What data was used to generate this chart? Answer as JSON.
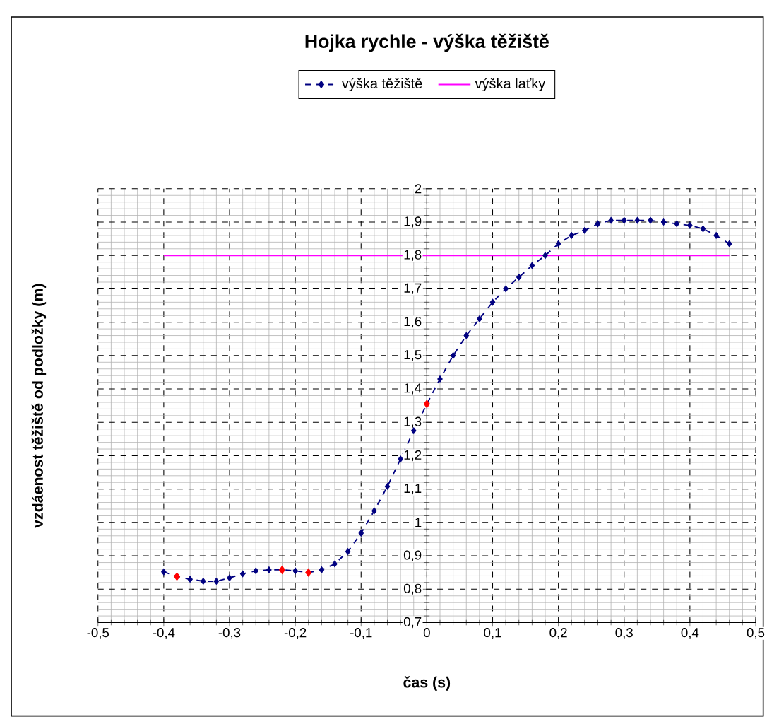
{
  "chart_data": {
    "type": "line",
    "title": "Hojka rychle - výška těžiště",
    "xlabel": "čas (s)",
    "ylabel": "vzdáenost těžiště od podložky (m)",
    "xlim": [
      -0.5,
      0.5
    ],
    "ylim": [
      0.7,
      2.0
    ],
    "xticks": [
      {
        "value": -0.5,
        "label": "-0,5"
      },
      {
        "value": -0.4,
        "label": "-0,4"
      },
      {
        "value": -0.3,
        "label": "-0,3"
      },
      {
        "value": -0.2,
        "label": "-0,2"
      },
      {
        "value": -0.1,
        "label": "-0,1"
      },
      0,
      {
        "value": 0.1,
        "label": "0,1"
      },
      {
        "value": 0.2,
        "label": "0,2"
      },
      {
        "value": 0.3,
        "label": "0,3"
      },
      {
        "value": 0.4,
        "label": "0,4"
      },
      {
        "value": 0.5,
        "label": "0,5"
      }
    ],
    "yticks": [
      {
        "value": 0.7,
        "label": "0,7"
      },
      {
        "value": 0.8,
        "label": "0,8"
      },
      {
        "value": 0.9,
        "label": "0,9"
      },
      1,
      {
        "value": 1.1,
        "label": "1,1"
      },
      {
        "value": 1.2,
        "label": "1,2"
      },
      {
        "value": 1.3,
        "label": "1,3"
      },
      {
        "value": 1.4,
        "label": "1,4"
      },
      {
        "value": 1.5,
        "label": "1,5"
      },
      {
        "value": 1.6,
        "label": "1,6"
      },
      {
        "value": 1.7,
        "label": "1,7"
      },
      {
        "value": 1.8,
        "label": "1,8"
      },
      {
        "value": 1.9,
        "label": "1,9"
      },
      2
    ],
    "grid": true,
    "legend": "top",
    "series": [
      {
        "name": "výška těžiště",
        "color": "#000080",
        "marker": "diamond",
        "line_style": "dashed",
        "x": [
          -0.4,
          -0.38,
          -0.36,
          -0.34,
          -0.32,
          -0.3,
          -0.28,
          -0.26,
          -0.24,
          -0.22,
          -0.2,
          -0.18,
          -0.16,
          -0.14,
          -0.12,
          -0.1,
          -0.08,
          -0.06,
          -0.04,
          -0.02,
          0.0,
          0.02,
          0.04,
          0.06,
          0.08,
          0.1,
          0.12,
          0.14,
          0.16,
          0.18,
          0.2,
          0.22,
          0.24,
          0.26,
          0.28,
          0.3,
          0.32,
          0.34,
          0.36,
          0.38,
          0.4,
          0.42,
          0.44,
          0.46
        ],
        "values": [
          0.852,
          0.838,
          0.83,
          0.824,
          0.824,
          0.834,
          0.846,
          0.855,
          0.858,
          0.858,
          0.855,
          0.85,
          0.858,
          0.876,
          0.913,
          0.968,
          1.035,
          1.108,
          1.19,
          1.275,
          1.355,
          1.43,
          1.5,
          1.56,
          1.61,
          1.66,
          1.7,
          1.735,
          1.77,
          1.8,
          1.835,
          1.86,
          1.875,
          1.895,
          1.905,
          1.905,
          1.905,
          1.905,
          1.9,
          1.895,
          1.89,
          1.88,
          1.86,
          1.835
        ],
        "colors": [
          "#000080",
          "#ff0000",
          "#000080",
          "#000080",
          "#000080",
          "#000080",
          "#000080",
          "#000080",
          "#000080",
          "#ff0000",
          "#000080",
          "#ff0000",
          "#000080",
          "#000080",
          "#000080",
          "#000080",
          "#000080",
          "#000080",
          "#000080",
          "#000080",
          "#ff0000",
          "#000080",
          "#000080",
          "#000080",
          "#000080",
          "#000080",
          "#000080",
          "#000080",
          "#000080",
          "#000080",
          "#000080",
          "#000080",
          "#000080",
          "#000080",
          "#000080",
          "#000080",
          "#000080",
          "#000080",
          "#000080",
          "#000080",
          "#000080",
          "#000080",
          "#000080",
          "#000080"
        ]
      },
      {
        "name": "výška laťky",
        "color": "#ff00ff",
        "marker": "none",
        "line_style": "solid",
        "x": [
          -0.4,
          0.46
        ],
        "values": [
          1.8,
          1.8
        ]
      }
    ]
  }
}
